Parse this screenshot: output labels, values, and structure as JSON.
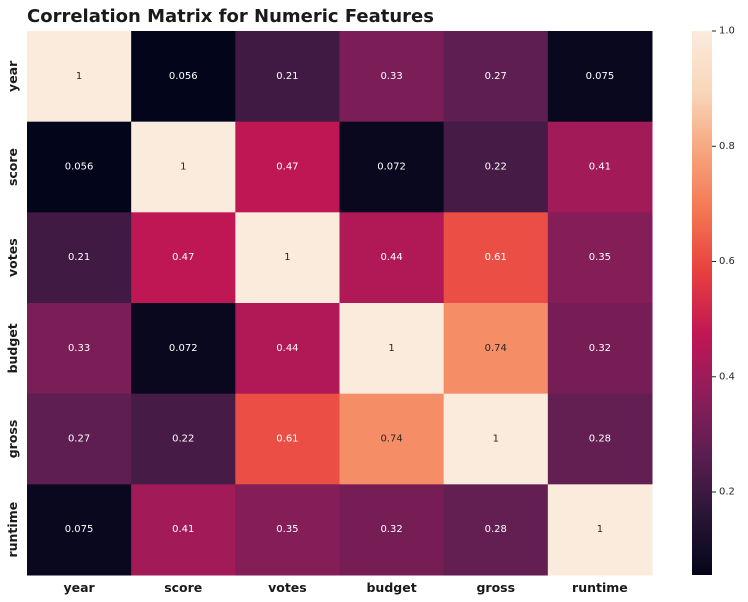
{
  "chart_data": {
    "type": "heatmap",
    "title": "Correlation Matrix for Numeric Features",
    "x_labels": [
      "year",
      "score",
      "votes",
      "budget",
      "gross",
      "runtime"
    ],
    "y_labels": [
      "year",
      "score",
      "votes",
      "budget",
      "gross",
      "runtime"
    ],
    "values": [
      [
        1,
        0.056,
        0.21,
        0.33,
        0.27,
        0.075
      ],
      [
        0.056,
        1,
        0.47,
        0.072,
        0.22,
        0.41
      ],
      [
        0.21,
        0.47,
        1,
        0.44,
        0.61,
        0.35
      ],
      [
        0.33,
        0.072,
        0.44,
        1,
        0.74,
        0.32
      ],
      [
        0.27,
        0.22,
        0.61,
        0.74,
        1,
        0.28
      ],
      [
        0.075,
        0.41,
        0.35,
        0.32,
        0.28,
        1
      ]
    ],
    "value_labels": [
      [
        "1",
        "0.056",
        "0.21",
        "0.33",
        "0.27",
        "0.075"
      ],
      [
        "0.056",
        "1",
        "0.47",
        "0.072",
        "0.22",
        "0.41"
      ],
      [
        "0.21",
        "0.47",
        "1",
        "0.44",
        "0.61",
        "0.35"
      ],
      [
        "0.33",
        "0.072",
        "0.44",
        "1",
        "0.74",
        "0.32"
      ],
      [
        "0.27",
        "0.22",
        "0.61",
        "0.74",
        "1",
        "0.28"
      ],
      [
        "0.075",
        "0.41",
        "0.35",
        "0.32",
        "0.28",
        "1"
      ]
    ],
    "colormap": "rocket",
    "vmin": 0.056,
    "vmax": 1.0,
    "colorbar": {
      "ticks": [
        0.2,
        0.4,
        0.6,
        0.8,
        1.0
      ],
      "tick_labels": [
        "0.2",
        "0.4",
        "0.6",
        "0.8",
        "1.0"
      ],
      "placement": "right"
    }
  },
  "colors": {
    "rocket_stops": [
      "#03051a",
      "#2a1636",
      "#5c1e51",
      "#8f1d5b",
      "#c11754",
      "#e83f3f",
      "#f37651",
      "#f6a47c",
      "#f9d7ba",
      "#faebdd"
    ]
  }
}
